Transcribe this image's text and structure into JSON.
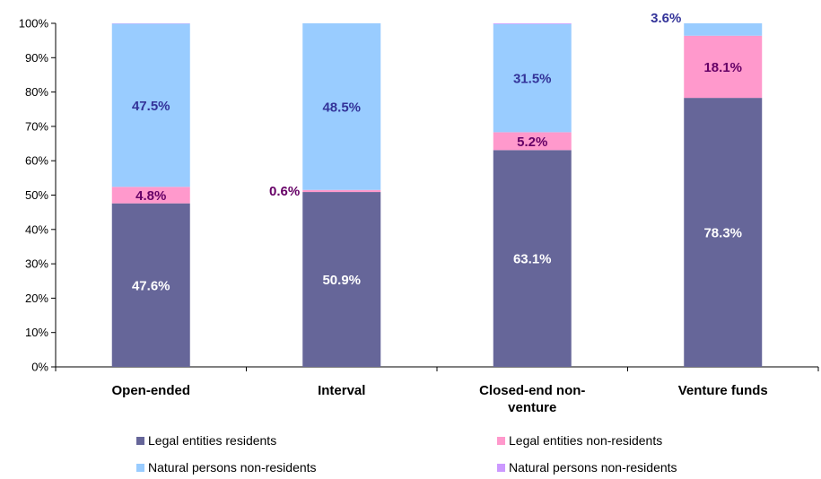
{
  "chart_data": {
    "type": "bar",
    "stacked": true,
    "percent_stacked": true,
    "categories": [
      "Open-ended",
      "Interval",
      "Closed-end non-venture",
      "Venture funds"
    ],
    "category_label_lines": [
      [
        "Open-ended"
      ],
      [
        "Interval"
      ],
      [
        "Closed-end non-",
        "venture"
      ],
      [
        "Venture funds"
      ]
    ],
    "yticks": [
      "0%",
      "10%",
      "20%",
      "30%",
      "40%",
      "50%",
      "60%",
      "70%",
      "80%",
      "90%",
      "100%"
    ],
    "ylim": [
      0,
      100
    ],
    "grid": false,
    "legend_position": "bottom",
    "series": [
      {
        "name": "Legal entities residents",
        "color": "#666699",
        "values": [
          47.6,
          50.9,
          63.1,
          78.3
        ],
        "labels": [
          "47.6%",
          "50.9%",
          "63.1%",
          "78.3%"
        ],
        "label_color": "#ffffff"
      },
      {
        "name": "Legal entities non-residents",
        "color": "#ff99cc",
        "values": [
          4.8,
          0.6,
          5.2,
          18.1
        ],
        "labels": [
          "4.8%",
          "0.6%",
          "5.2%",
          "18.1%"
        ],
        "label_color": "#660066"
      },
      {
        "name": "Natural persons non-residents",
        "color": "#99ccff",
        "values": [
          47.5,
          48.5,
          31.5,
          3.6
        ],
        "labels": [
          "47.5%",
          "48.5%",
          "31.5%",
          "3.6%"
        ],
        "label_color": "#333399"
      },
      {
        "name": "Natural persons non-residents",
        "color": "#cc99ff",
        "values": [
          0.1,
          0.0,
          0.2,
          0.0
        ],
        "labels": [
          "",
          "",
          "",
          ""
        ],
        "label_color": "#333399"
      }
    ]
  }
}
